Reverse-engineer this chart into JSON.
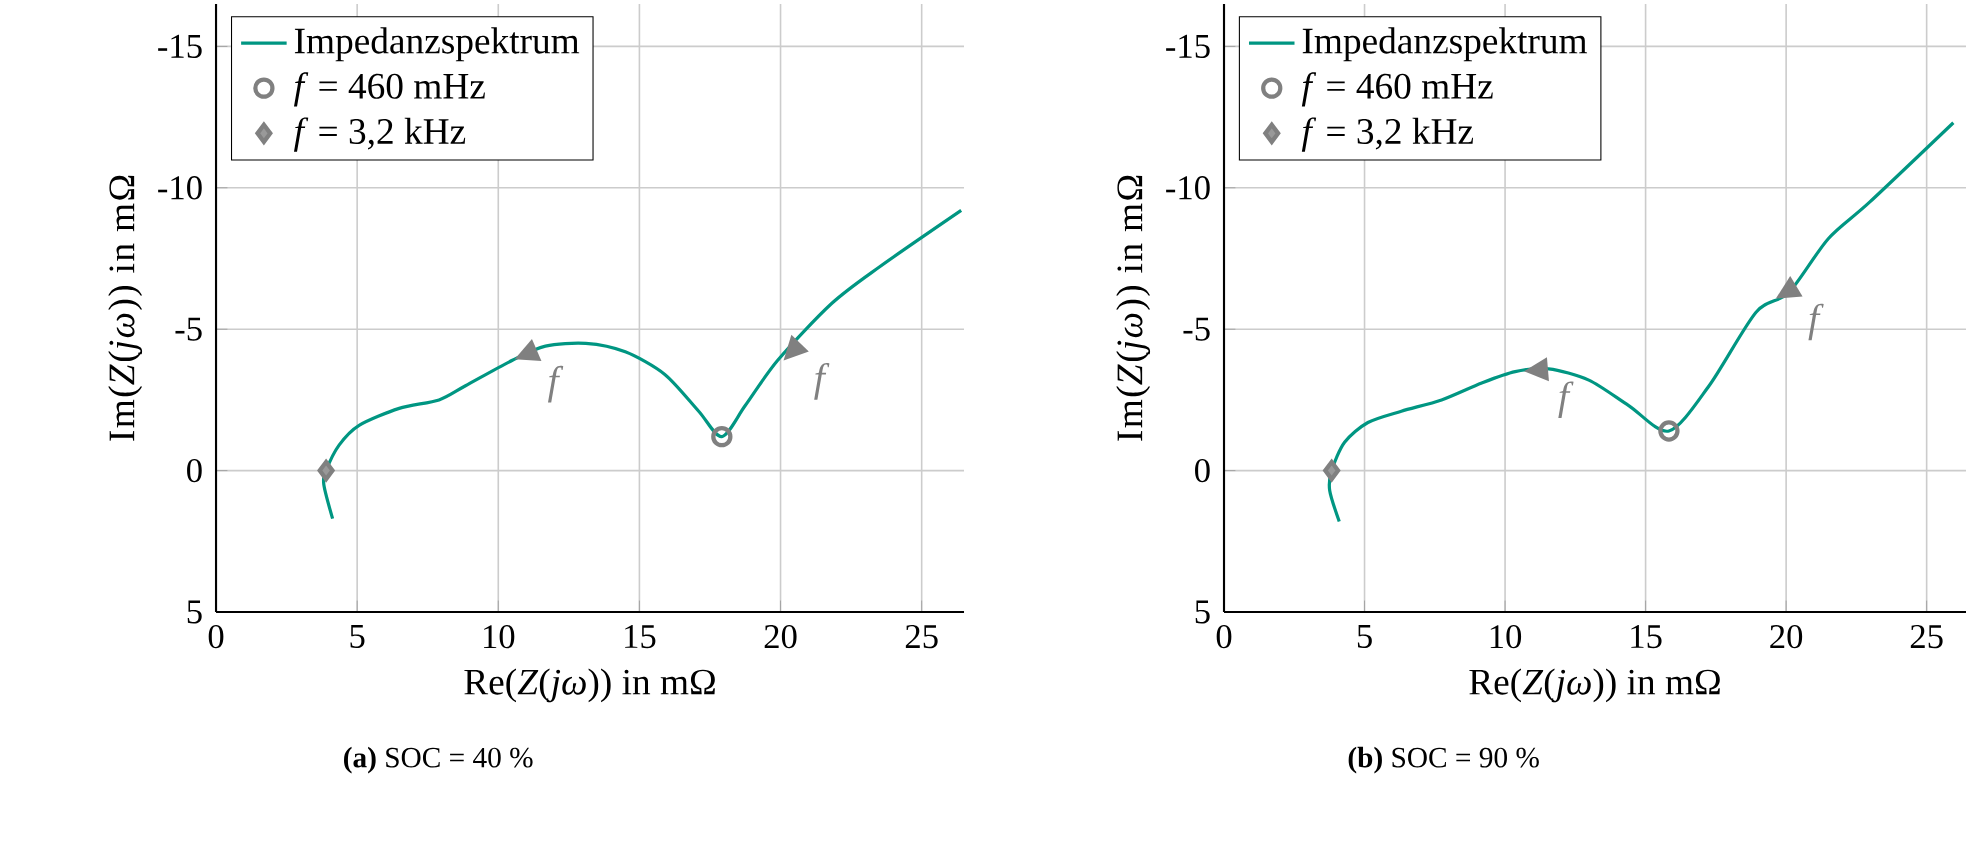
{
  "chart_data": [
    {
      "type": "line",
      "title": "**(a)** SOC = 40 %",
      "xlabel": "Re(*Z*(*jω*)) in mΩ",
      "ylabel": "Im(*Z*(*jω*)) in mΩ",
      "xlim": [
        0,
        26.5
      ],
      "ylim": [
        5,
        -16.5
      ],
      "xticks": [
        0,
        5,
        10,
        15,
        20,
        25
      ],
      "yticks": [
        -15,
        -10,
        -5,
        0,
        5
      ],
      "grid": true,
      "legend": "top left",
      "series": [
        {
          "name": "Impedanzspektrum",
          "color": "#009682",
          "line_style": "solid",
          "x": [
            4.13,
            3.82,
            3.9,
            4.36,
            5.07,
            6.49,
            7.9,
            8.84,
            10.5,
            11.67,
            13.1,
            14.5,
            15.9,
            17.1,
            17.92,
            18.75,
            19.9,
            21.8,
            23.5,
            26.4
          ],
          "values": [
            1.7,
            0.5,
            0,
            -0.9,
            -1.6,
            -2.2,
            -2.5,
            -3.0,
            -3.9,
            -4.4,
            -4.5,
            -4.2,
            -3.4,
            -2.1,
            -1.2,
            -2.3,
            -3.9,
            -5.9,
            -7.2,
            -9.2
          ]
        },
        {
          "name": "*f* = 460 mHz",
          "type": "scatter",
          "marker": "circle",
          "color": "#808080",
          "x": [
            17.92
          ],
          "values": [
            -1.2
          ]
        },
        {
          "name": "*f* = 3,2 kHz",
          "type": "scatter",
          "marker": "diamond",
          "color": "#808080",
          "x": [
            3.9
          ],
          "values": [
            0
          ]
        }
      ],
      "annotations": [
        {
          "text": "f",
          "x": 10.97,
          "y": -4.1
        },
        {
          "text": "f",
          "x": 20.4,
          "y": -4.2
        }
      ]
    },
    {
      "type": "line",
      "title": "**(b)** SOC = 90 %",
      "xlabel": "Re(*Z*(*jω*)) in mΩ",
      "ylabel": "Im(*Z*(*jω*)) in mΩ",
      "xlim": [
        0,
        26.4
      ],
      "ylim": [
        5,
        -16.5
      ],
      "xticks": [
        0,
        5,
        10,
        15,
        20,
        25
      ],
      "yticks": [
        -15,
        -10,
        -5,
        0,
        5
      ],
      "grid": true,
      "legend": "top left",
      "series": [
        {
          "name": "Impedanzspektrum",
          "color": "#009682",
          "line_style": "solid",
          "x": [
            4.1,
            3.76,
            3.83,
            4.29,
            5.12,
            6.31,
            7.74,
            9.17,
            10.36,
            11.55,
            12.98,
            14.4,
            15.83,
            17.26,
            18.93,
            20.1,
            21.5,
            22.98,
            25.95
          ],
          "values": [
            1.8,
            0.7,
            0,
            -1.0,
            -1.7,
            -2.1,
            -2.5,
            -3.1,
            -3.5,
            -3.6,
            -3.2,
            -2.3,
            -1.4,
            -3.0,
            -5.6,
            -6.3,
            -8.2,
            -9.5,
            -12.3
          ]
        },
        {
          "name": "*f* = 460 mHz",
          "type": "scatter",
          "marker": "circle",
          "color": "#808080",
          "x": [
            15.83
          ],
          "values": [
            -1.4
          ]
        },
        {
          "name": "*f* = 3,2 kHz",
          "type": "scatter",
          "marker": "diamond",
          "color": "#808080",
          "x": [
            3.83
          ],
          "values": [
            0
          ]
        }
      ],
      "annotations": [
        {
          "text": "f",
          "x": 11.1,
          "y": -3.55
        },
        {
          "text": "f",
          "x": 20.0,
          "y": -6.3
        }
      ]
    }
  ]
}
